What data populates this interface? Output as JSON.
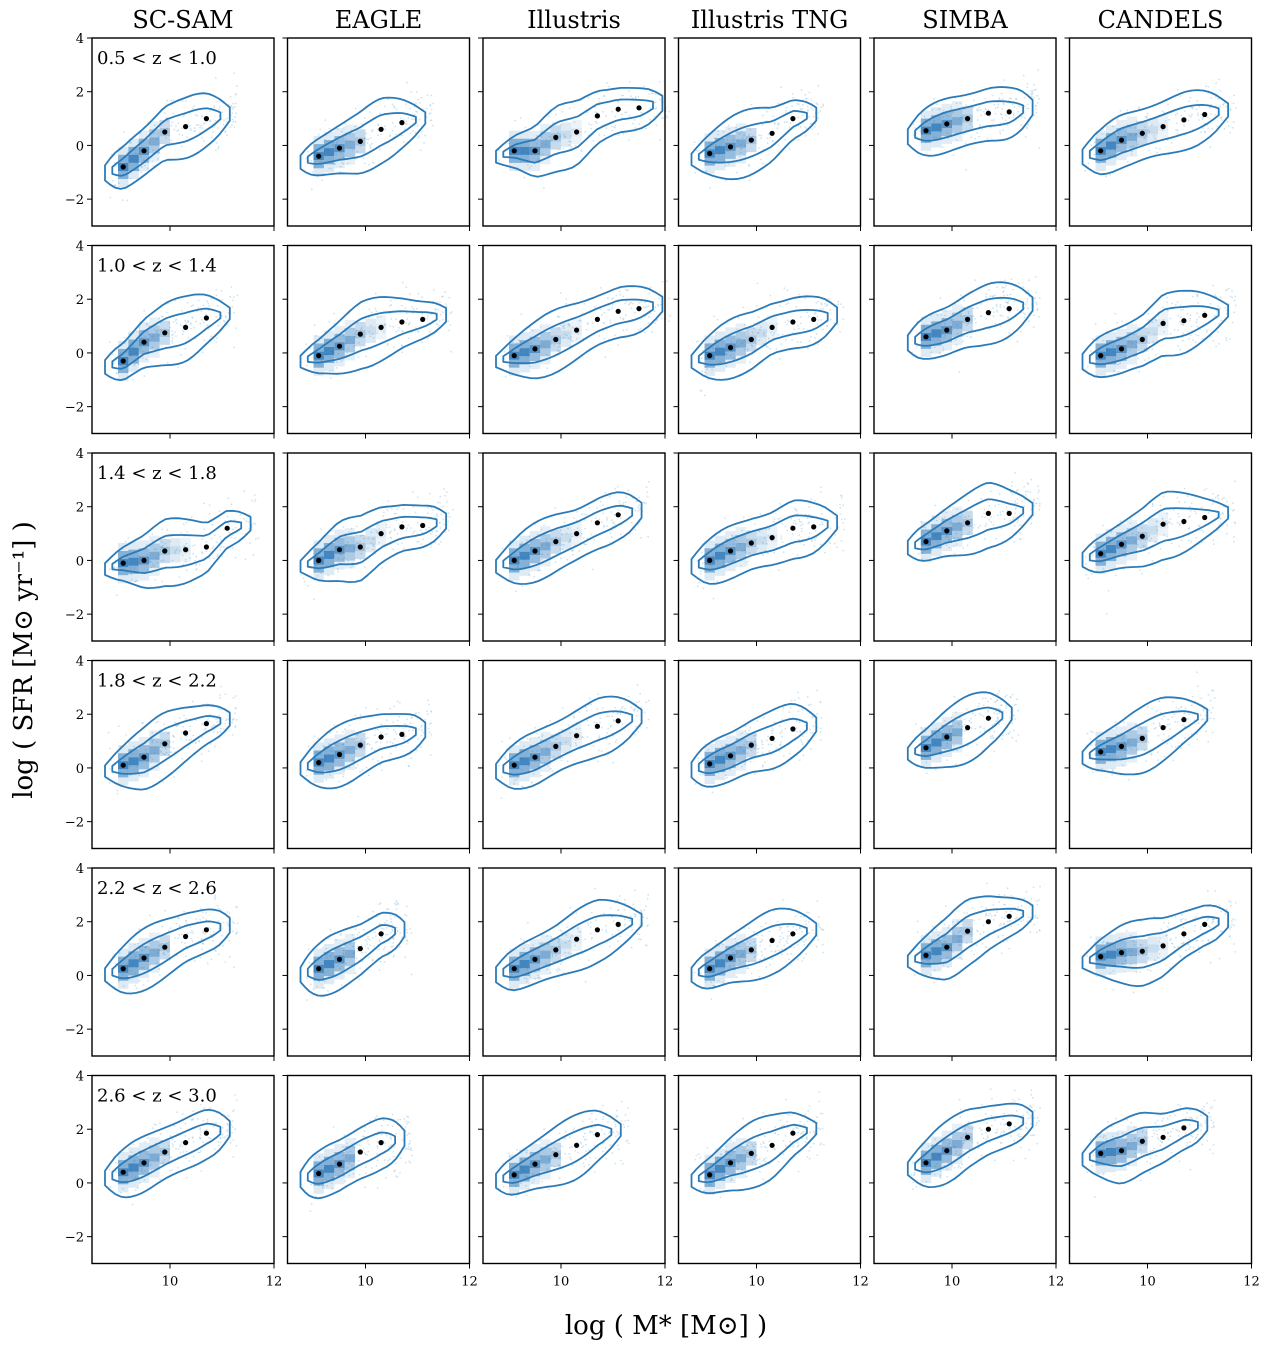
{
  "figure": {
    "column_titles": [
      "SC-SAM",
      "EAGLE",
      "Illustris",
      "Illustris TNG",
      "SIMBA",
      "CANDELS"
    ],
    "row_labels": [
      "0.5 < z < 1.0",
      "1.0 < z < 1.4",
      "1.4 < z < 1.8",
      "1.8 < z < 2.2",
      "2.2 < z < 2.6",
      "2.6 < z < 3.0"
    ],
    "xlabel": "log ( M* [M⊙] )",
    "ylabel": "log ( SFR [M⊙ yr⁻¹] )",
    "colors": {
      "contour": "#2b7bb9",
      "density_dark": "#1f6fb4",
      "scatter": "#9ecae1",
      "median": "#000000"
    }
  },
  "chart_data": {
    "type": "scatter",
    "subtype": "2d-density-contour grid (6 rows x 6 columns) with binned medians",
    "xlim": [
      8.5,
      12
    ],
    "ylim": [
      -3,
      4
    ],
    "xticks": [
      10,
      12
    ],
    "yticks": [
      -2,
      0,
      2,
      4
    ],
    "models": [
      "SC-SAM",
      "EAGLE",
      "Illustris",
      "Illustris TNG",
      "SIMBA",
      "CANDELS"
    ],
    "redshift_bins": [
      "0.5 < z < 1.0",
      "1.0 < z < 1.4",
      "1.4 < z < 1.8",
      "1.8 < z < 2.2",
      "2.2 < z < 2.6",
      "2.6 < z < 3.0"
    ],
    "median_x": [
      9.1,
      9.5,
      9.9,
      10.3,
      10.7,
      11.1,
      11.5
    ],
    "medians": [
      [
        [
          -0.8,
          -0.2,
          0.5,
          0.7,
          1.0,
          null,
          null
        ],
        [
          -0.4,
          -0.1,
          0.15,
          0.6,
          0.85,
          null,
          null
        ],
        [
          -0.2,
          -0.2,
          0.3,
          0.5,
          1.1,
          1.35,
          1.4
        ],
        [
          -0.3,
          -0.05,
          0.2,
          0.45,
          1.0,
          null,
          null
        ],
        [
          null,
          0.55,
          0.8,
          1.0,
          1.2,
          1.25,
          null
        ],
        [
          -0.2,
          0.2,
          0.45,
          0.7,
          0.95,
          1.15,
          null
        ]
      ],
      [
        [
          -0.3,
          0.4,
          0.75,
          0.95,
          1.3,
          null,
          null
        ],
        [
          -0.1,
          0.25,
          0.7,
          0.95,
          1.15,
          1.25,
          null
        ],
        [
          -0.1,
          0.15,
          0.5,
          0.85,
          1.25,
          1.55,
          1.65
        ],
        [
          -0.1,
          0.2,
          0.5,
          0.95,
          1.15,
          1.25,
          null
        ],
        [
          null,
          0.6,
          0.85,
          1.25,
          1.5,
          1.65,
          null
        ],
        [
          -0.1,
          0.15,
          0.5,
          1.1,
          1.2,
          1.4,
          null
        ]
      ],
      [
        [
          -0.1,
          0.0,
          0.35,
          0.4,
          0.5,
          1.2,
          null
        ],
        [
          0.0,
          0.4,
          0.5,
          1.0,
          1.25,
          1.3,
          null
        ],
        [
          0.0,
          0.35,
          0.7,
          1.0,
          1.4,
          1.7,
          null
        ],
        [
          0.0,
          0.35,
          0.65,
          0.85,
          1.2,
          1.25,
          null
        ],
        [
          null,
          0.7,
          1.1,
          1.4,
          1.75,
          1.75,
          null
        ],
        [
          0.25,
          0.6,
          0.9,
          1.35,
          1.45,
          1.6,
          null
        ]
      ],
      [
        [
          0.1,
          0.4,
          0.9,
          1.3,
          1.65,
          null,
          null
        ],
        [
          0.2,
          0.5,
          0.85,
          1.15,
          1.25,
          null,
          null
        ],
        [
          0.1,
          0.4,
          0.8,
          1.2,
          1.55,
          1.75,
          null
        ],
        [
          0.15,
          0.45,
          0.85,
          1.1,
          1.45,
          null,
          null
        ],
        [
          null,
          0.75,
          1.15,
          1.5,
          1.85,
          null,
          null
        ],
        [
          0.6,
          0.8,
          1.1,
          1.5,
          1.8,
          null,
          null
        ]
      ],
      [
        [
          0.25,
          0.65,
          1.05,
          1.45,
          1.7,
          null,
          null
        ],
        [
          0.25,
          0.6,
          1.0,
          1.55,
          null,
          null,
          null
        ],
        [
          0.25,
          0.6,
          0.95,
          1.35,
          1.7,
          1.9,
          null
        ],
        [
          0.25,
          0.65,
          0.95,
          1.3,
          1.55,
          null,
          null
        ],
        [
          null,
          0.75,
          1.05,
          1.65,
          2.0,
          2.2,
          null
        ],
        [
          0.7,
          0.85,
          0.9,
          1.1,
          1.55,
          1.9,
          null
        ]
      ],
      [
        [
          0.4,
          0.75,
          1.15,
          1.5,
          1.85,
          null,
          null
        ],
        [
          0.35,
          0.7,
          1.15,
          1.5,
          null,
          null,
          null
        ],
        [
          0.3,
          0.7,
          1.05,
          1.4,
          1.8,
          null,
          null
        ],
        [
          0.3,
          0.75,
          1.1,
          1.4,
          1.85,
          null,
          null
        ],
        [
          null,
          0.75,
          1.2,
          1.7,
          2.0,
          2.2,
          null
        ],
        [
          1.1,
          1.2,
          1.55,
          1.7,
          2.05,
          null,
          null
        ]
      ]
    ],
    "grid": false,
    "legend": "none"
  }
}
